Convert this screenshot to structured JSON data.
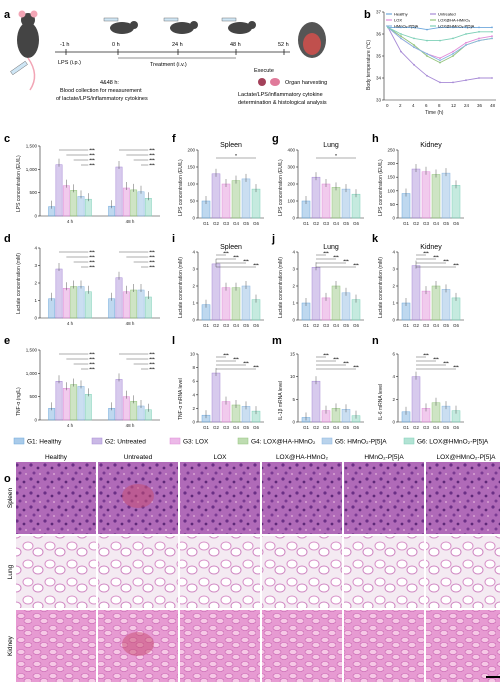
{
  "figure": {
    "panel_letters": [
      "a",
      "b",
      "c",
      "d",
      "e",
      "f",
      "g",
      "h",
      "i",
      "j",
      "k",
      "l",
      "m",
      "n",
      "o"
    ],
    "colors": {
      "G1": "#6fa8dc",
      "G2": "#a78ad6",
      "G3": "#e08ad8",
      "G4": "#93c47d",
      "G5": "#8ab6e0",
      "G6": "#7fd0b8"
    },
    "legend": [
      {
        "key": "G1",
        "label": "G1: Healthy"
      },
      {
        "key": "G2",
        "label": "G2: Untreated"
      },
      {
        "key": "G3",
        "label": "G3: LOX"
      },
      {
        "key": "G4",
        "label": "G4: LOX@HA-HMnO₂"
      },
      {
        "key": "G5",
        "label": "G5: HMnO₂-P[5]A"
      },
      {
        "key": "G6",
        "label": "G6: LOX@HMnO₂-P[5]A"
      }
    ]
  },
  "panel_a": {
    "timeline": [
      "-1 h",
      "0 h",
      "24 h",
      "48 h",
      "52 h"
    ],
    "lps_label": "LPS (i.p.)",
    "treatment_label": "Treatment (i.v.)",
    "execute_label": "Execute",
    "organ_label": "Organ harvesting",
    "blood_label_1": "4&48 h:",
    "blood_label_2": "Blood collection for measurement",
    "blood_label_3": "of lactate/LPS/inflammatory cytokines",
    "analysis_label_1": "Lactate/LPS/inflammatory cytokine",
    "analysis_label_2": "determination & histological analysis"
  },
  "panel_b": {
    "ylabel": "Body temperature (℃)",
    "xlabel": "Time (h)",
    "xticks": [
      "0",
      "2",
      "4",
      "6",
      "8",
      "12",
      "24",
      "36",
      "48"
    ],
    "yticks": [
      "33",
      "34",
      "35",
      "36",
      "37"
    ],
    "legend": [
      "Healthy",
      "Untreated",
      "LOX",
      "LOX@HA-HMnO₂",
      "HMnO₂-P[5]A",
      "LOX@HMnO₂-P[5]A"
    ]
  },
  "chart_data": [
    {
      "id": "b",
      "type": "line",
      "x": [
        0,
        2,
        4,
        6,
        8,
        12,
        24,
        36,
        48
      ],
      "ylim": [
        33,
        37
      ],
      "series": [
        {
          "name": "Healthy",
          "values": [
            36.3,
            36.3,
            36.3,
            36.2,
            36.3,
            36.3,
            36.3,
            36.3,
            36.3
          ]
        },
        {
          "name": "Untreated",
          "values": [
            36.3,
            35.2,
            34.6,
            34.1,
            33.8,
            33.8,
            33.9,
            34.0,
            34.0
          ]
        },
        {
          "name": "LOX",
          "values": [
            36.3,
            35.8,
            35.4,
            35.1,
            34.9,
            35.2,
            35.6,
            35.8,
            35.9
          ]
        },
        {
          "name": "LOX@HA-HMnO₂",
          "values": [
            36.3,
            35.9,
            35.5,
            35.0,
            34.7,
            35.0,
            35.5,
            35.7,
            35.8
          ]
        },
        {
          "name": "HMnO₂-P[5]A",
          "values": [
            36.3,
            35.8,
            35.4,
            35.1,
            34.8,
            35.1,
            35.5,
            35.7,
            35.8
          ]
        },
        {
          "name": "LOX@HMnO₂-P[5]A",
          "values": [
            36.3,
            36.0,
            35.8,
            35.7,
            35.7,
            35.8,
            36.0,
            36.1,
            36.1
          ]
        }
      ]
    },
    {
      "id": "c",
      "type": "bar",
      "ylabel": "LPS concentration (EU/L)",
      "ylim": [
        0,
        1500
      ],
      "yticks": [
        "0",
        "500",
        "1,000",
        "1,500"
      ],
      "categories": [
        "4 h",
        "48 h"
      ],
      "series": [
        {
          "name": "G1",
          "values": [
            200,
            210
          ]
        },
        {
          "name": "G2",
          "values": [
            1100,
            1050
          ]
        },
        {
          "name": "G3",
          "values": [
            650,
            600
          ]
        },
        {
          "name": "G4",
          "values": [
            550,
            560
          ]
        },
        {
          "name": "G5",
          "values": [
            420,
            520
          ]
        },
        {
          "name": "G6",
          "values": [
            360,
            380
          ]
        }
      ]
    },
    {
      "id": "d",
      "type": "bar",
      "ylabel": "Lactate concentration (mM)",
      "ylim": [
        0,
        4
      ],
      "yticks": [
        "0",
        "1",
        "2",
        "3",
        "4"
      ],
      "categories": [
        "4 h",
        "48 h"
      ],
      "series": [
        {
          "name": "G1",
          "values": [
            1.1,
            1.1
          ]
        },
        {
          "name": "G2",
          "values": [
            2.8,
            2.3
          ]
        },
        {
          "name": "G3",
          "values": [
            1.7,
            1.5
          ]
        },
        {
          "name": "G4",
          "values": [
            1.8,
            1.6
          ]
        },
        {
          "name": "G5",
          "values": [
            1.8,
            1.6
          ]
        },
        {
          "name": "G6",
          "values": [
            1.5,
            1.2
          ]
        }
      ]
    },
    {
      "id": "e",
      "type": "bar",
      "ylabel": "TNF-α (ng/L)",
      "ylim": [
        0,
        1500
      ],
      "yticks": [
        "0",
        "500",
        "1,000",
        "1,500"
      ],
      "categories": [
        "4 h",
        "48 h"
      ],
      "series": [
        {
          "name": "G1",
          "values": [
            250,
            250
          ]
        },
        {
          "name": "G2",
          "values": [
            830,
            870
          ]
        },
        {
          "name": "G3",
          "values": [
            680,
            500
          ]
        },
        {
          "name": "G4",
          "values": [
            760,
            400
          ]
        },
        {
          "name": "G5",
          "values": [
            720,
            300
          ]
        },
        {
          "name": "G6",
          "values": [
            550,
            220
          ]
        }
      ]
    },
    {
      "id": "f",
      "type": "bar",
      "title": "Spleen",
      "ylabel": "LPS concentration (EU/L)",
      "ylim": [
        0,
        200
      ],
      "yticks": [
        "0",
        "50",
        "100",
        "150",
        "200"
      ],
      "categories": [
        "G1",
        "G2",
        "G3",
        "G4",
        "G5",
        "G6"
      ],
      "values": [
        50,
        130,
        100,
        110,
        115,
        85
      ]
    },
    {
      "id": "g",
      "type": "bar",
      "title": "Lung",
      "ylabel": "LPS concentration (EU/L)",
      "ylim": [
        0,
        400
      ],
      "yticks": [
        "0",
        "100",
        "200",
        "300",
        "400"
      ],
      "categories": [
        "G1",
        "G2",
        "G3",
        "G4",
        "G5",
        "G6"
      ],
      "values": [
        100,
        240,
        200,
        180,
        170,
        140
      ]
    },
    {
      "id": "h",
      "type": "bar",
      "title": "Kidney",
      "ylabel": "LPS concentration (EU/L)",
      "ylim": [
        0,
        250
      ],
      "yticks": [
        "0",
        "50",
        "100",
        "150",
        "200",
        "250"
      ],
      "categories": [
        "G1",
        "G2",
        "G3",
        "G4",
        "G5",
        "G6"
      ],
      "values": [
        90,
        180,
        170,
        160,
        165,
        120
      ]
    },
    {
      "id": "i",
      "type": "bar",
      "title": "Spleen",
      "ylabel": "Lactate concentration (mM)",
      "ylim": [
        0,
        4
      ],
      "yticks": [
        "0",
        "1",
        "2",
        "3",
        "4"
      ],
      "categories": [
        "G1",
        "G2",
        "G3",
        "G4",
        "G5",
        "G6"
      ],
      "values": [
        0.9,
        3.3,
        1.9,
        1.9,
        2.0,
        1.2
      ]
    },
    {
      "id": "j",
      "type": "bar",
      "title": "Lung",
      "ylabel": "Lactate concentration (mM)",
      "ylim": [
        0,
        4
      ],
      "yticks": [
        "0",
        "1",
        "2",
        "3",
        "4"
      ],
      "categories": [
        "G1",
        "G2",
        "G3",
        "G4",
        "G5",
        "G6"
      ],
      "values": [
        1.0,
        3.1,
        1.3,
        2.0,
        1.6,
        1.2
      ]
    },
    {
      "id": "k",
      "type": "bar",
      "title": "Kidney",
      "ylabel": "Lactate concentration (mM)",
      "ylim": [
        0,
        4
      ],
      "yticks": [
        "0",
        "1",
        "2",
        "3",
        "4"
      ],
      "categories": [
        "G1",
        "G2",
        "G3",
        "G4",
        "G5",
        "G6"
      ],
      "values": [
        1.0,
        3.2,
        1.7,
        2.0,
        1.8,
        1.3
      ]
    },
    {
      "id": "l",
      "type": "bar",
      "ylabel": "TNF-α mRNA level",
      "ylim": [
        0,
        10
      ],
      "yticks": [
        "0",
        "2",
        "4",
        "6",
        "8",
        "10"
      ],
      "categories": [
        "G1",
        "G2",
        "G3",
        "G4",
        "G5",
        "G6"
      ],
      "values": [
        1.0,
        7.2,
        3.0,
        2.5,
        2.3,
        1.6
      ]
    },
    {
      "id": "m",
      "type": "bar",
      "ylabel": "IL-1β mRNA level",
      "ylim": [
        0,
        15
      ],
      "yticks": [
        "0",
        "5",
        "10",
        "15"
      ],
      "categories": [
        "G1",
        "G2",
        "G3",
        "G4",
        "G5",
        "G6"
      ],
      "values": [
        1.0,
        9.0,
        2.5,
        3.0,
        2.8,
        1.4
      ]
    },
    {
      "id": "n",
      "type": "bar",
      "ylabel": "IL-6 mRNA level",
      "ylim": [
        0,
        6
      ],
      "yticks": [
        "0",
        "2",
        "4",
        "6"
      ],
      "categories": [
        "G1",
        "G2",
        "G3",
        "G4",
        "G5",
        "G6"
      ],
      "values": [
        0.9,
        4.0,
        1.2,
        1.7,
        1.4,
        1.0
      ]
    }
  ],
  "panel_o": {
    "columns": [
      "Healthy",
      "Untreated",
      "LOX",
      "LOX@HA-HMnO₂",
      "HMnO₂-P[5]A",
      "LOX@HMnO₂-P[5]A"
    ],
    "rows": [
      "Spleen",
      "Lung",
      "Kidney"
    ]
  }
}
